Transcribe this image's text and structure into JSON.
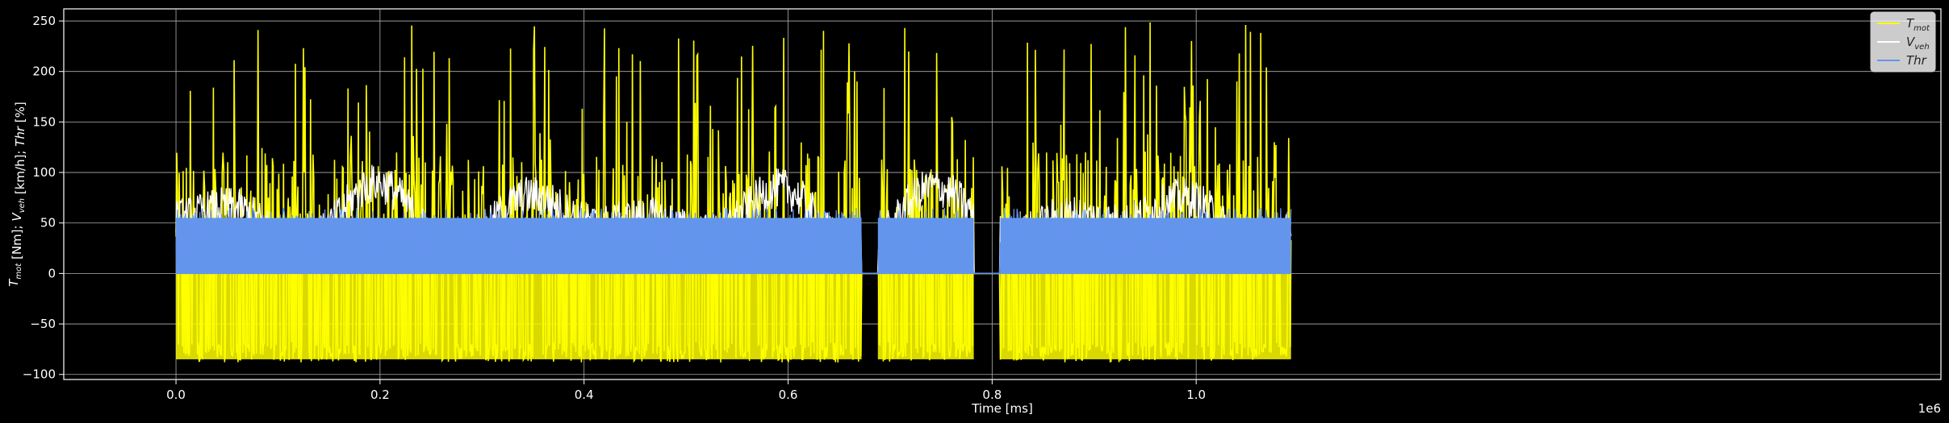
{
  "chart_data": {
    "type": "line",
    "title": "",
    "xlabel": "Time [ms]",
    "ylabel_parts": [
      {
        "t": "T",
        "sub": "mot"
      },
      {
        "t": " [Nm]; "
      },
      {
        "t": "V",
        "sub": "veh"
      },
      {
        "t": " [km/h]; "
      },
      {
        "t": "Thr",
        "italic": true
      },
      {
        "t": " [%]"
      }
    ],
    "x_offset_label": "1e6",
    "xlim": [
      -0.11,
      1.73
    ],
    "ylim": [
      -105,
      262
    ],
    "x_ticks": [
      0.0,
      0.2,
      0.4,
      0.6,
      0.8,
      1.0
    ],
    "x_tick_labels": [
      "0.0",
      "0.2",
      "0.4",
      "0.6",
      "0.8",
      "1.0"
    ],
    "y_ticks": [
      -100,
      -50,
      0,
      50,
      100,
      150,
      200,
      250
    ],
    "y_tick_labels": [
      "−100",
      "−50",
      "0",
      "50",
      "100",
      "150",
      "200",
      "250"
    ],
    "grid": true,
    "legend_position": "top-right",
    "data_extent_x": [
      0.0,
      1.093
    ],
    "gaps_x": [
      [
        0.672,
        0.688
      ],
      [
        0.782,
        0.808
      ]
    ],
    "series": [
      {
        "name": "T",
        "sub": "mot",
        "color": "#ffff00",
        "min": -88,
        "max": 250,
        "typical_high": 120
      },
      {
        "name": "V",
        "sub": "veh",
        "color": "#ffffff",
        "min": 0,
        "max": 150,
        "typical_high": 90
      },
      {
        "name": "Thr",
        "sub": "",
        "color": "#6495ed",
        "min": 0,
        "max": 65,
        "typical_high": 55
      }
    ]
  }
}
